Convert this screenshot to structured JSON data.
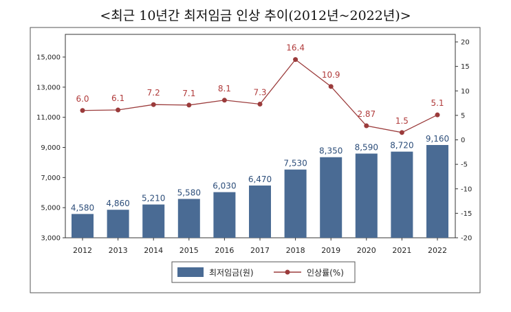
{
  "chart_data": {
    "title": "<최근 10년간 최저임금 인상 추이(2012년~2022년)>",
    "categories": [
      "2012",
      "2013",
      "2014",
      "2015",
      "2016",
      "2017",
      "2018",
      "2019",
      "2020",
      "2021",
      "2022"
    ],
    "series": [
      {
        "name": "최저임금(원)",
        "type": "bar",
        "axis": "left",
        "color": "#4a6b94",
        "values": [
          4580,
          4860,
          5210,
          5580,
          6030,
          6470,
          7530,
          8350,
          8590,
          8720,
          9160
        ],
        "labels": [
          "4,580",
          "4,860",
          "5,210",
          "5,580",
          "6,030",
          "6,470",
          "7,530",
          "8,350",
          "8,590",
          "8,720",
          "9,160"
        ]
      },
      {
        "name": "인상률(%)",
        "type": "line",
        "axis": "right",
        "color": "#9b3b3b",
        "values": [
          6.0,
          6.1,
          7.2,
          7.1,
          8.1,
          7.3,
          16.4,
          10.9,
          2.87,
          1.5,
          5.1
        ],
        "labels": [
          "6.0",
          "6.1",
          "7.2",
          "7.1",
          "8.1",
          "7.3",
          "16.4",
          "10.9",
          "2.87",
          "1.5",
          "5.1"
        ]
      }
    ],
    "left_axis": {
      "min": 3000,
      "max": 16000,
      "ticks": [
        3000,
        5000,
        7000,
        9000,
        11000,
        13000,
        15000
      ],
      "tick_labels": [
        "3,000",
        "5,000",
        "7,000",
        "9,000",
        "11,000",
        "13,000",
        "15,000"
      ]
    },
    "right_axis": {
      "min": -20,
      "max": 20,
      "ticks": [
        -20,
        -15,
        -10,
        -5,
        0,
        5,
        10,
        15,
        20
      ],
      "tick_labels": [
        "-20",
        "-15",
        "-10",
        "-5",
        "0",
        "5",
        "10",
        "15",
        "20"
      ]
    },
    "grid": false,
    "legend": "bottom"
  }
}
